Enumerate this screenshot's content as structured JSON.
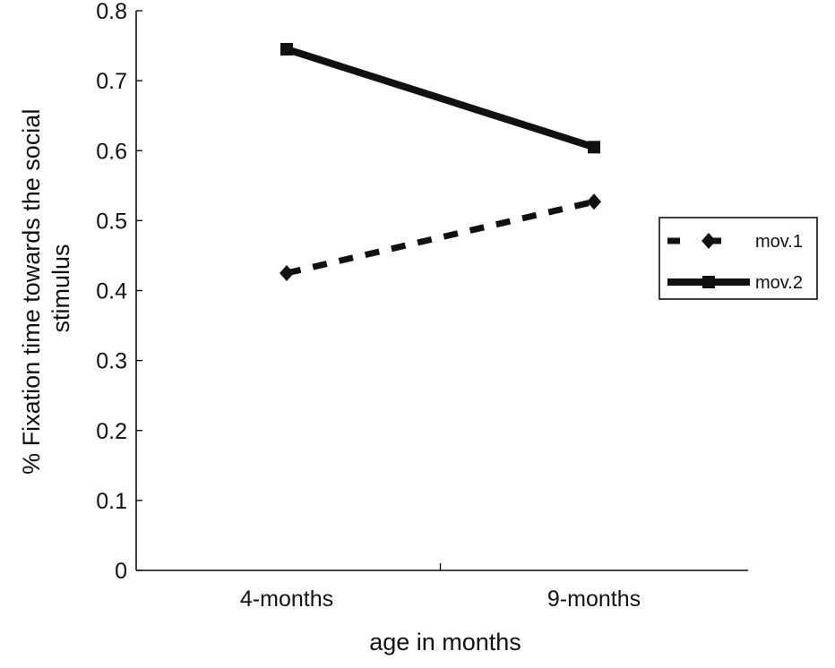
{
  "chart_data": {
    "type": "line",
    "categories": [
      "4-months",
      "9-months"
    ],
    "xlabel": "age in months",
    "ylabel_lines": [
      "% Fixation time towards the social",
      "stimulus"
    ],
    "ylim": [
      0,
      0.8
    ],
    "yticks": [
      "0",
      "0.1",
      "0.2",
      "0.3",
      "0.4",
      "0.5",
      "0.6",
      "0.7",
      "0.8"
    ],
    "grid": false,
    "legend_position": "right",
    "series": [
      {
        "name": "mov.1",
        "values": [
          0.425,
          0.527
        ],
        "style": "dashed",
        "marker": "diamond",
        "color": "#111111"
      },
      {
        "name": "mov.2",
        "values": [
          0.745,
          0.605
        ],
        "style": "solid",
        "marker": "square",
        "color": "#111111"
      }
    ]
  }
}
